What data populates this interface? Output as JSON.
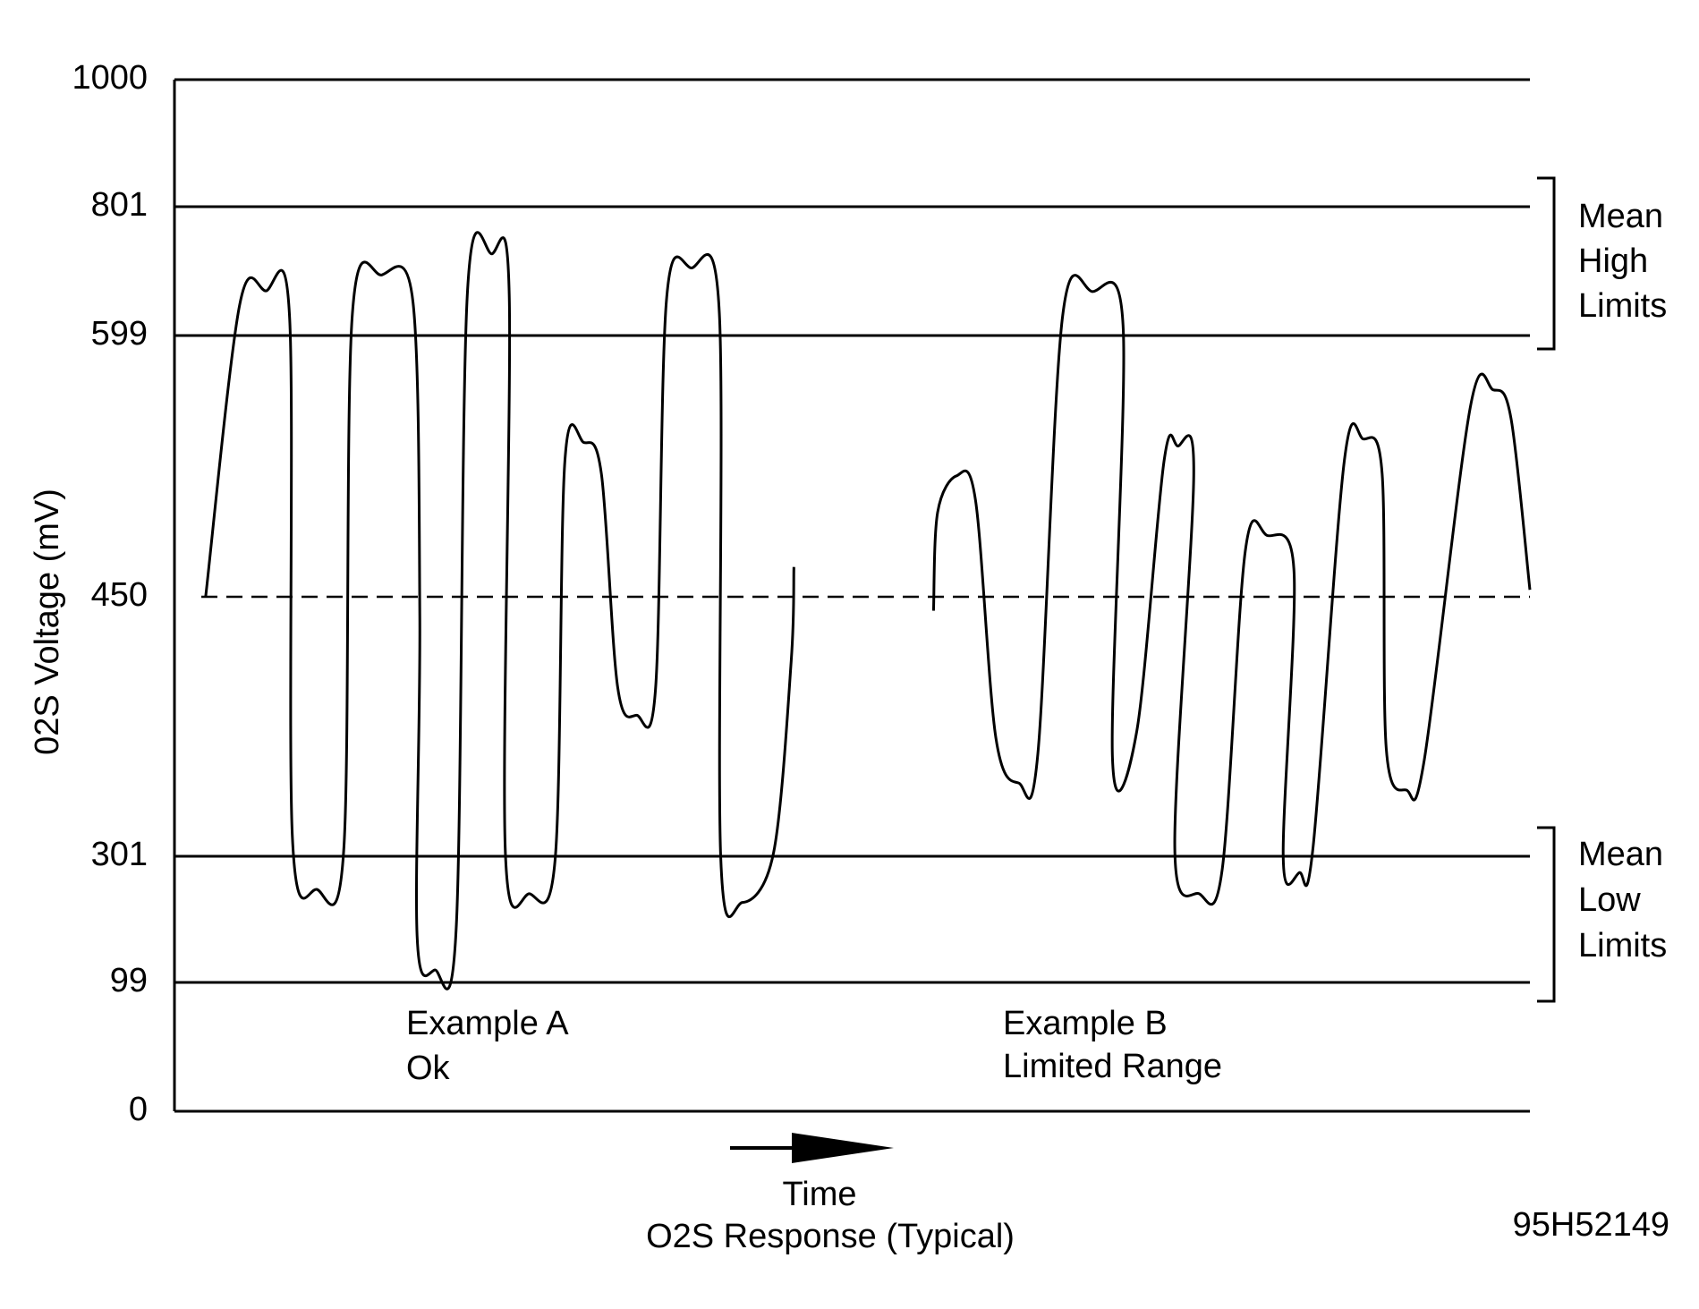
{
  "chart_data": {
    "type": "line",
    "y_label": "02S Voltage (mV)",
    "x_label": "Time",
    "caption": "O2S Response (Typical)",
    "figure_id": "95H52149",
    "ylim": [
      0,
      1000
    ],
    "yticks": [
      1000,
      801,
      599,
      450,
      301,
      99,
      0
    ],
    "xlim": [
      0,
      100
    ],
    "grid": true,
    "reference_lines": [
      {
        "value": 450,
        "style": "dashed"
      }
    ],
    "annotations": [
      {
        "lines": [
          "Example A",
          "Ok"
        ]
      },
      {
        "lines": [
          "Example B",
          "Limited Range"
        ]
      },
      {
        "lines": [
          "Mean",
          "High",
          "Limits"
        ]
      },
      {
        "lines": [
          "Mean",
          "Low",
          "Limits"
        ]
      }
    ],
    "series": [
      {
        "color": "#000000",
        "x": [
          2.3,
          4.8,
          6.7,
          8.5,
          8.7,
          10.5,
          12.5,
          13.1,
          15.3,
          17.6,
          18.1,
          17.9,
          19.2,
          20.8,
          21.6,
          23.4,
          24.7,
          24.4,
          26.2,
          28.1,
          28.8,
          30.2,
          31.5,
          32.7,
          34.1,
          35.5,
          36.3,
          38.1,
          40.2,
          40.3,
          41.9,
          44.2,
          45.5,
          45.7
        ],
        "values": [
          450,
          646,
          669,
          625,
          312,
          248,
          306,
          625,
          694,
          651,
          439,
          174,
          119,
          192,
          661,
          727,
          661,
          306,
          241,
          300,
          527,
          538,
          520,
          398,
          382,
          398,
          655,
          705,
          634,
          300,
          227,
          303,
          413,
          467
        ]
      },
      {
        "color": "#000000",
        "x": [
          56,
          56.3,
          57.7,
          59.1,
          60.6,
          62.3,
          63.7,
          65.5,
          67.7,
          70,
          69.2,
          71,
          73,
          74,
          75.2,
          73.8,
          75.6,
          77.3,
          79,
          80.6,
          82.6,
          81.8,
          83,
          84,
          86.3,
          87.7,
          89.1,
          89.4,
          90.9,
          92.2,
          95.6,
          97.3,
          98.6,
          100
        ],
        "values": [
          442,
          498,
          519,
          505,
          369,
          343,
          360,
          625,
          668,
          608,
          358,
          373,
          527,
          536,
          520,
          306,
          241,
          280,
          476,
          485,
          464,
          300,
          275,
          306,
          527,
          540,
          520,
          363,
          339,
          356,
          558,
          568,
          552,
          454
        ]
      }
    ]
  }
}
